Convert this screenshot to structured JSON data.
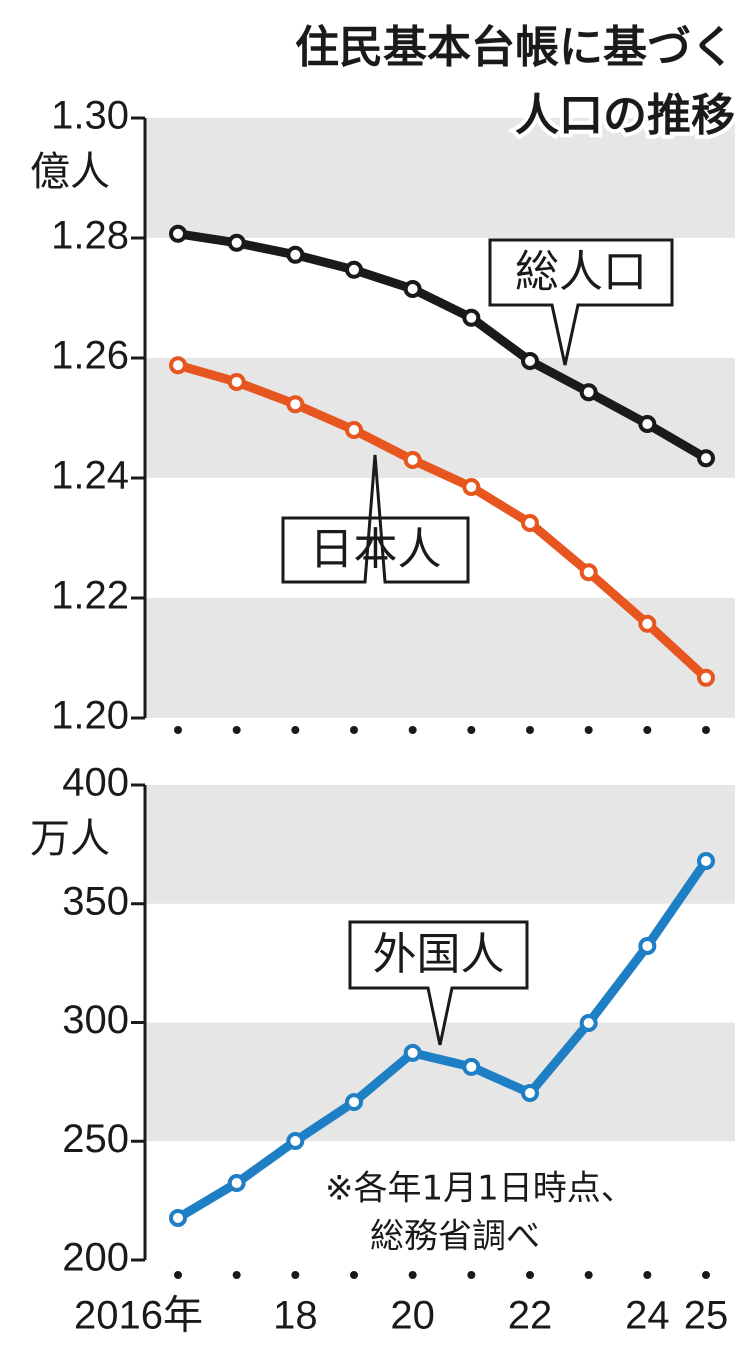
{
  "chart_data": [
    {
      "type": "line",
      "title": [
        "住民基本台帳に基づく",
        "人口の推移"
      ],
      "y_unit": "億人",
      "ylim": [
        1.2,
        1.3
      ],
      "yticks": [
        {
          "value": 1.2,
          "label": "1.20"
        },
        1.22,
        1.24,
        1.26,
        1.28,
        {
          "value": 1.3,
          "label": "1.30"
        }
      ],
      "series": [
        {
          "name": "総人口",
          "color": "#1a1a1a",
          "values": [
            1.2807,
            1.2792,
            1.2772,
            1.2747,
            1.2715,
            1.2667,
            1.2595,
            1.2543,
            1.249,
            1.2433
          ]
        },
        {
          "name": "日本人",
          "color": "#e8561f",
          "values": [
            1.2588,
            1.256,
            1.2523,
            1.248,
            1.243,
            1.2385,
            1.2325,
            1.2243,
            1.2157,
            1.2067
          ]
        }
      ]
    },
    {
      "type": "line",
      "y_unit": "万人",
      "ylim": [
        200,
        400
      ],
      "yticks": [
        200,
        250,
        300,
        350,
        400
      ],
      "categories": [
        "2016年",
        null,
        "18",
        null,
        "20",
        null,
        "22",
        null,
        "24",
        "25"
      ],
      "series": [
        {
          "name": "外国人",
          "color": "#1f7fc4",
          "values": [
            217.7,
            232.4,
            250.1,
            266.5,
            287.2,
            281.3,
            270.3,
            299.8,
            332.2,
            368
          ]
        }
      ],
      "note": [
        "※各年1月1日時点、",
        "総務省調べ"
      ]
    }
  ]
}
